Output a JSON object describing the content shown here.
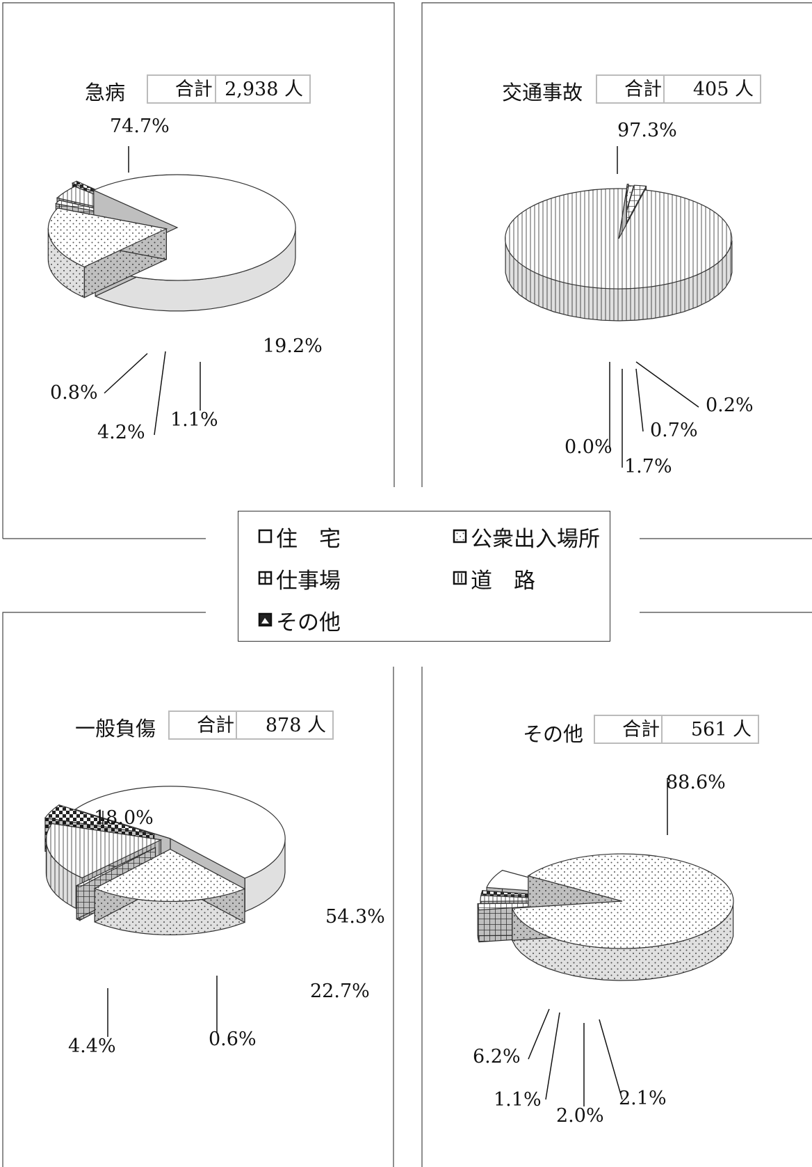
{
  "legend": [
    {
      "label": "住　宅",
      "pattern": "plain"
    },
    {
      "label": "公衆出入場所",
      "pattern": "dots"
    },
    {
      "label": "仕事場",
      "pattern": "grid"
    },
    {
      "label": "道　路",
      "pattern": "vstripe"
    },
    {
      "label": "その他",
      "pattern": "dark"
    }
  ],
  "chart_data": [
    {
      "type": "pie",
      "title": "急病",
      "total_label": "合計",
      "total_value": "2,938",
      "total_unit": "人",
      "categories": [
        "住宅",
        "公衆出入場所",
        "仕事場",
        "道路",
        "その他"
      ],
      "values": [
        74.7,
        19.2,
        1.1,
        4.2,
        0.8
      ],
      "labels": [
        "74.7%",
        "19.2%",
        "1.1%",
        "4.2%",
        "0.8%"
      ]
    },
    {
      "type": "pie",
      "title": "交通事故",
      "total_label": "合計",
      "total_value": "405",
      "total_unit": "人",
      "categories": [
        "住宅",
        "公衆出入場所",
        "仕事場",
        "道路",
        "その他"
      ],
      "values": [
        0.2,
        0.7,
        1.7,
        97.3,
        0.0
      ],
      "labels": [
        "0.2%",
        "0.7%",
        "1.7%",
        "97.3%",
        "0.0%"
      ]
    },
    {
      "type": "pie",
      "title": "一般負傷",
      "total_label": "合計",
      "total_value": "878",
      "total_unit": "人",
      "categories": [
        "住宅",
        "公衆出入場所",
        "仕事場",
        "道路",
        "その他"
      ],
      "values": [
        54.3,
        22.7,
        0.6,
        18.0,
        4.4
      ],
      "labels": [
        "54.3%",
        "22.7%",
        "0.6%",
        "18.0%",
        "4.4%"
      ]
    },
    {
      "type": "pie",
      "title": "その他",
      "total_label": "合計",
      "total_value": "561",
      "total_unit": "人",
      "categories": [
        "住宅",
        "公衆出入場所",
        "仕事場",
        "道路",
        "その他"
      ],
      "values": [
        6.2,
        88.6,
        2.1,
        2.0,
        1.1
      ],
      "labels": [
        "6.2%",
        "88.6%",
        "2.1%",
        "2.0%",
        "1.1%"
      ]
    }
  ]
}
